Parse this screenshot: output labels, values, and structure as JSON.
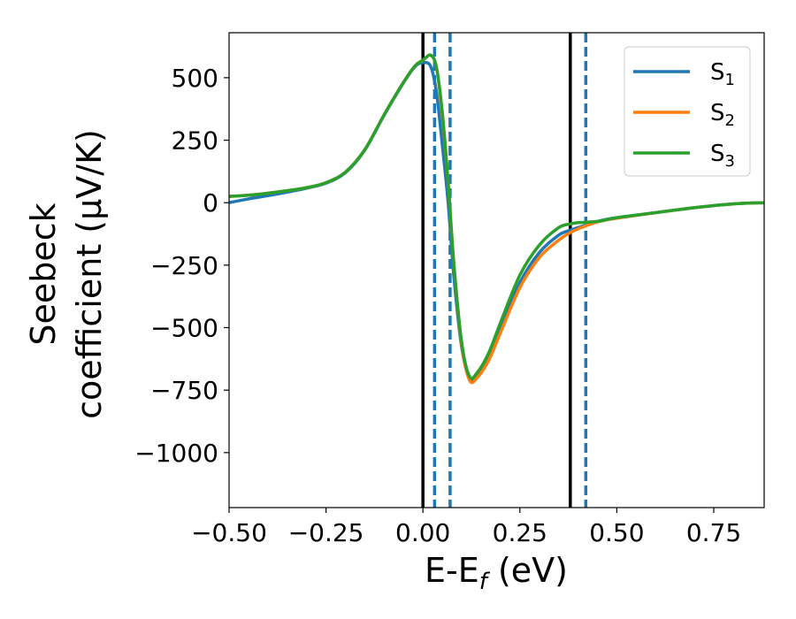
{
  "chart_data": {
    "type": "line",
    "title": "",
    "xlabel": "E-E_f (eV)",
    "xlabel_parts": {
      "main": "E-E",
      "sub": "f",
      "unit": " (eV)"
    },
    "ylabel_lines": [
      "Seebeck",
      "coefficient  (μV/K)"
    ],
    "xlim": [
      -0.5,
      0.88
    ],
    "ylim": [
      -1220,
      680
    ],
    "xticks": [
      -0.5,
      -0.25,
      0.0,
      0.25,
      0.5,
      0.75
    ],
    "xtick_labels": [
      "−0.50",
      "−0.25",
      "0.00",
      "0.25",
      "0.50",
      "0.75"
    ],
    "yticks": [
      500,
      250,
      0,
      -250,
      -500,
      -750,
      -1000
    ],
    "ytick_labels": [
      "500",
      "250",
      "0",
      "−250",
      "−500",
      "−750",
      "−1000"
    ],
    "grid": false,
    "legend_position": "top-right",
    "series": [
      {
        "name": "S1",
        "legend_main": "S",
        "legend_sub": "1",
        "color": "#1f77b4",
        "x": [
          -0.5,
          -0.45,
          -0.4,
          -0.35,
          -0.3,
          -0.25,
          -0.2,
          -0.15,
          -0.1,
          -0.05,
          -0.02,
          0.0,
          0.02,
          0.035,
          0.05,
          0.065,
          0.08,
          0.1,
          0.12,
          0.14,
          0.17,
          0.2,
          0.25,
          0.3,
          0.35,
          0.38,
          0.4,
          0.45,
          0.5,
          0.6,
          0.7,
          0.8,
          0.88
        ],
        "y": [
          0,
          15,
          28,
          42,
          58,
          78,
          120,
          210,
          350,
          480,
          545,
          560,
          545,
          440,
          230,
          0,
          -300,
          -580,
          -700,
          -690,
          -610,
          -500,
          -320,
          -200,
          -130,
          -110,
          -100,
          -75,
          -60,
          -40,
          -20,
          -5,
          0
        ]
      },
      {
        "name": "S2",
        "legend_main": "S",
        "legend_sub": "2",
        "color": "#ff7f0e",
        "x": [
          -0.5,
          -0.45,
          -0.4,
          -0.35,
          -0.3,
          -0.25,
          -0.2,
          -0.15,
          -0.1,
          -0.05,
          -0.02,
          0.0,
          0.02,
          0.035,
          0.05,
          0.065,
          0.08,
          0.1,
          0.12,
          0.14,
          0.17,
          0.2,
          0.25,
          0.3,
          0.35,
          0.38,
          0.4,
          0.45,
          0.5,
          0.6,
          0.7,
          0.8,
          0.88
        ],
        "y": [
          25,
          30,
          38,
          48,
          60,
          80,
          122,
          212,
          352,
          482,
          548,
          570,
          590,
          540,
          350,
          80,
          -250,
          -570,
          -710,
          -700,
          -630,
          -520,
          -340,
          -220,
          -150,
          -120,
          -105,
          -77,
          -62,
          -40,
          -20,
          -5,
          0
        ]
      },
      {
        "name": "S3",
        "legend_main": "S",
        "legend_sub": "3",
        "color": "#2ca02c",
        "x": [
          -0.5,
          -0.45,
          -0.4,
          -0.35,
          -0.3,
          -0.25,
          -0.2,
          -0.15,
          -0.1,
          -0.05,
          -0.02,
          0.0,
          0.02,
          0.035,
          0.05,
          0.065,
          0.08,
          0.1,
          0.12,
          0.14,
          0.17,
          0.2,
          0.25,
          0.3,
          0.35,
          0.38,
          0.4,
          0.45,
          0.5,
          0.6,
          0.7,
          0.8,
          0.88
        ],
        "y": [
          25,
          30,
          38,
          48,
          60,
          80,
          122,
          212,
          352,
          482,
          548,
          570,
          590,
          540,
          360,
          80,
          -250,
          -560,
          -695,
          -680,
          -600,
          -480,
          -290,
          -170,
          -100,
          -85,
          -80,
          -75,
          -60,
          -40,
          -20,
          -5,
          0
        ]
      }
    ],
    "vlines": [
      {
        "x": 0.0,
        "color": "#000000",
        "style": "solid"
      },
      {
        "x": 0.03,
        "color": "#1f77b4",
        "style": "dashed"
      },
      {
        "x": 0.07,
        "color": "#1f77b4",
        "style": "dashed"
      },
      {
        "x": 0.38,
        "color": "#000000",
        "style": "solid"
      },
      {
        "x": 0.42,
        "color": "#1f77b4",
        "style": "dashed"
      }
    ]
  }
}
